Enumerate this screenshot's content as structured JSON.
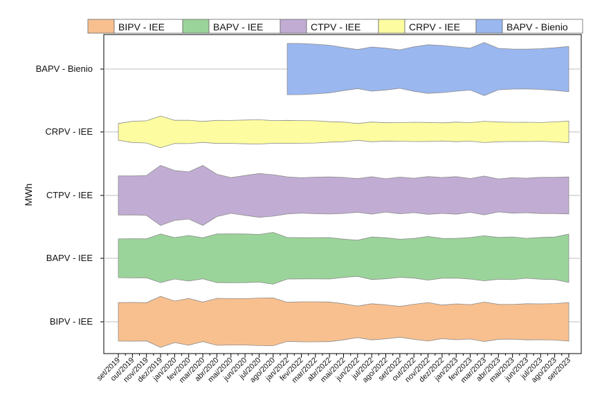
{
  "chart_data": {
    "type": "area",
    "title": "",
    "ylabel": "MWh",
    "xlabel": "",
    "x": [
      "set/2019",
      "out/2019",
      "nov/2019",
      "dez/2019",
      "jan/2020",
      "fev/2020",
      "mar/2020",
      "abr/2020",
      "mai/2020",
      "jun/2020",
      "jul/2020",
      "ago/2020",
      "jan/2022",
      "fev/2022",
      "mar/2022",
      "abr/2022",
      "mai/2022",
      "jun/2022",
      "jul/2022",
      "ago/2022",
      "set/2022",
      "out/2022",
      "nov/2022",
      "dez/2022",
      "jan/2023",
      "fev/2023",
      "mar/2023",
      "abr/2023",
      "mai/2023",
      "jun/2023",
      "jul/2023",
      "ago/2023",
      "set/2023"
    ],
    "legend_position": "top",
    "grid": "horizontal at each category",
    "series": [
      {
        "name": "BIPV - IEE",
        "color": "#f8c08f",
        "values": [
          2.53,
          2.55,
          2.52,
          3.35,
          2.74,
          3.07,
          2.6,
          3.09,
          3.05,
          3.05,
          3.13,
          3.15,
          2.57,
          2.64,
          2.64,
          2.61,
          2.38,
          2.07,
          2.38,
          2.24,
          2.03,
          2.31,
          2.54,
          2.21,
          2.36,
          2.26,
          2.6,
          2.3,
          2.28,
          2.38,
          2.36,
          2.4,
          2.54
        ]
      },
      {
        "name": "BAPV - IEE",
        "color": "#9bd49a",
        "values": [
          2.55,
          2.58,
          2.56,
          3.2,
          2.73,
          3.0,
          2.7,
          3.2,
          3.21,
          3.2,
          3.14,
          3.41,
          2.74,
          2.71,
          2.72,
          2.73,
          2.52,
          2.38,
          2.8,
          2.7,
          2.51,
          2.61,
          2.87,
          2.63,
          2.61,
          2.74,
          2.96,
          2.75,
          2.81,
          2.63,
          2.75,
          2.8,
          3.18
        ]
      },
      {
        "name": "CTPV - IEE",
        "color": "#c1add4",
        "values": [
          2.58,
          2.56,
          2.63,
          3.95,
          3.28,
          3.1,
          3.95,
          2.78,
          2.35,
          2.62,
          2.88,
          2.73,
          2.45,
          2.33,
          2.41,
          2.45,
          2.37,
          2.21,
          2.46,
          2.19,
          2.42,
          2.26,
          2.48,
          2.36,
          2.47,
          2.23,
          2.55,
          2.17,
          2.34,
          2.27,
          2.38,
          2.38,
          2.44
        ]
      },
      {
        "name": "CRPV - IEE",
        "color": "#fdfca0",
        "values": [
          1.11,
          1.39,
          1.46,
          2.09,
          1.53,
          1.54,
          1.38,
          1.52,
          1.51,
          1.56,
          1.6,
          1.49,
          1.52,
          1.49,
          1.46,
          1.35,
          1.29,
          1.11,
          1.3,
          1.21,
          1.23,
          1.27,
          1.25,
          1.2,
          1.29,
          1.22,
          1.4,
          1.3,
          1.26,
          1.27,
          1.24,
          1.32,
          1.43
        ]
      },
      {
        "name": "BAPV - Bienio",
        "color": "#9ab7f0",
        "values": [
          null,
          null,
          null,
          null,
          null,
          null,
          null,
          null,
          null,
          null,
          null,
          null,
          3.37,
          3.36,
          3.27,
          3.14,
          2.84,
          2.57,
          2.91,
          2.75,
          2.54,
          2.93,
          3.2,
          3.1,
          2.92,
          2.76,
          3.49,
          2.73,
          2.64,
          2.62,
          2.68,
          2.8,
          2.98
        ]
      }
    ]
  }
}
